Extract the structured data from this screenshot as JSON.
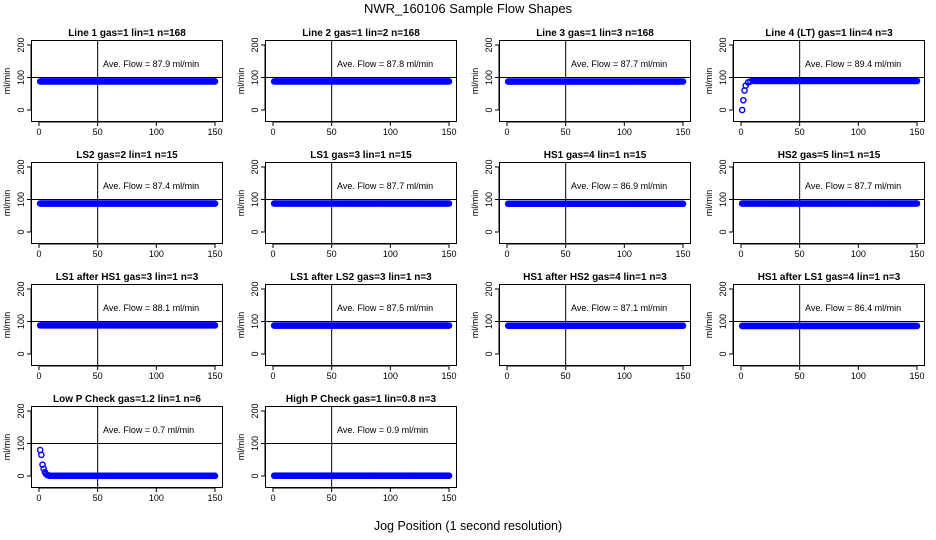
{
  "figure": {
    "title": "NWR_160106  Sample Flow Shapes",
    "xlabel": "Jog Position (1 second resolution)"
  },
  "chart_data": [
    {
      "type": "scatter",
      "title": "Line 1 gas=1 lin=1 n=168",
      "annotation": "Ave. Flow =  87.9  ml/min",
      "ylabel": "ml/min",
      "shape": "flat",
      "level": 87.9,
      "xlim": [
        0,
        150
      ],
      "ylim": [
        0,
        200
      ],
      "x_ticks": [
        0,
        50,
        100,
        150
      ],
      "y_ticks": [
        0,
        100,
        200
      ],
      "ref_hline": 100,
      "ref_vline": 50
    },
    {
      "type": "scatter",
      "title": "Line 2 gas=1 lin=2 n=168",
      "annotation": "Ave. Flow =  87.8  ml/min",
      "ylabel": "ml/min",
      "shape": "flat",
      "level": 87.8,
      "xlim": [
        0,
        150
      ],
      "ylim": [
        0,
        200
      ],
      "x_ticks": [
        0,
        50,
        100,
        150
      ],
      "y_ticks": [
        0,
        100,
        200
      ],
      "ref_hline": 100,
      "ref_vline": 50
    },
    {
      "type": "scatter",
      "title": "Line 3 gas=1 lin=3 n=168",
      "annotation": "Ave. Flow =  87.7  ml/min",
      "ylabel": "ml/min",
      "shape": "flat",
      "level": 87.7,
      "xlim": [
        0,
        150
      ],
      "ylim": [
        0,
        200
      ],
      "x_ticks": [
        0,
        50,
        100,
        150
      ],
      "y_ticks": [
        0,
        100,
        200
      ],
      "ref_hline": 100,
      "ref_vline": 50
    },
    {
      "type": "scatter",
      "title": "Line 4 (LT) gas=1 lin=4 n=3",
      "annotation": "Ave. Flow =  89.4  ml/min",
      "ylabel": "ml/min",
      "shape": "rise",
      "level": 89.4,
      "early_points": [
        [
          1,
          0
        ],
        [
          2,
          30
        ],
        [
          3,
          60
        ],
        [
          4,
          75
        ],
        [
          6,
          85
        ],
        [
          8,
          88
        ],
        [
          10,
          90
        ]
      ],
      "xlim": [
        0,
        150
      ],
      "ylim": [
        0,
        200
      ],
      "x_ticks": [
        0,
        50,
        100,
        150
      ],
      "y_ticks": [
        0,
        100,
        200
      ],
      "ref_hline": 100,
      "ref_vline": 50
    },
    {
      "type": "scatter",
      "title": "LS2 gas=2 lin=1 n=15",
      "annotation": "Ave. Flow =  87.4  ml/min",
      "ylabel": "ml/min",
      "shape": "flat",
      "level": 87.4,
      "xlim": [
        0,
        150
      ],
      "ylim": [
        0,
        200
      ],
      "x_ticks": [
        0,
        50,
        100,
        150
      ],
      "y_ticks": [
        0,
        100,
        200
      ],
      "ref_hline": 100,
      "ref_vline": 50
    },
    {
      "type": "scatter",
      "title": "LS1 gas=3 lin=1 n=15",
      "annotation": "Ave. Flow =  87.7  ml/min",
      "ylabel": "ml/min",
      "shape": "flat",
      "level": 87.7,
      "xlim": [
        0,
        150
      ],
      "ylim": [
        0,
        200
      ],
      "x_ticks": [
        0,
        50,
        100,
        150
      ],
      "y_ticks": [
        0,
        100,
        200
      ],
      "ref_hline": 100,
      "ref_vline": 50
    },
    {
      "type": "scatter",
      "title": "HS1 gas=4 lin=1 n=15",
      "annotation": "Ave. Flow =  86.9  ml/min",
      "ylabel": "ml/min",
      "shape": "flat",
      "level": 86.9,
      "xlim": [
        0,
        150
      ],
      "ylim": [
        0,
        200
      ],
      "x_ticks": [
        0,
        50,
        100,
        150
      ],
      "y_ticks": [
        0,
        100,
        200
      ],
      "ref_hline": 100,
      "ref_vline": 50
    },
    {
      "type": "scatter",
      "title": "HS2 gas=5 lin=1 n=15",
      "annotation": "Ave. Flow =  87.7  ml/min",
      "ylabel": "ml/min",
      "shape": "flat",
      "level": 87.7,
      "xlim": [
        0,
        150
      ],
      "ylim": [
        0,
        200
      ],
      "x_ticks": [
        0,
        50,
        100,
        150
      ],
      "y_ticks": [
        0,
        100,
        200
      ],
      "ref_hline": 100,
      "ref_vline": 50
    },
    {
      "type": "scatter",
      "title": "LS1 after HS1 gas=3 lin=1 n=3",
      "annotation": "Ave. Flow =  88.1  ml/min",
      "ylabel": "ml/min",
      "shape": "flat",
      "level": 88.1,
      "xlim": [
        0,
        150
      ],
      "ylim": [
        0,
        200
      ],
      "x_ticks": [
        0,
        50,
        100,
        150
      ],
      "y_ticks": [
        0,
        100,
        200
      ],
      "ref_hline": 100,
      "ref_vline": 50
    },
    {
      "type": "scatter",
      "title": "LS1 after LS2 gas=3 lin=1 n=3",
      "annotation": "Ave. Flow =  87.5  ml/min",
      "ylabel": "ml/min",
      "shape": "flat",
      "level": 87.5,
      "xlim": [
        0,
        150
      ],
      "ylim": [
        0,
        200
      ],
      "x_ticks": [
        0,
        50,
        100,
        150
      ],
      "y_ticks": [
        0,
        100,
        200
      ],
      "ref_hline": 100,
      "ref_vline": 50
    },
    {
      "type": "scatter",
      "title": "HS1 after HS2 gas=4 lin=1 n=3",
      "annotation": "Ave. Flow =  87.1  ml/min",
      "ylabel": "ml/min",
      "shape": "flat",
      "level": 87.1,
      "xlim": [
        0,
        150
      ],
      "ylim": [
        0,
        200
      ],
      "x_ticks": [
        0,
        50,
        100,
        150
      ],
      "y_ticks": [
        0,
        100,
        200
      ],
      "ref_hline": 100,
      "ref_vline": 50
    },
    {
      "type": "scatter",
      "title": "HS1 after LS1 gas=4 lin=1 n=3",
      "annotation": "Ave. Flow =  86.4  ml/min",
      "ylabel": "ml/min",
      "shape": "flat",
      "level": 86.4,
      "xlim": [
        0,
        150
      ],
      "ylim": [
        0,
        200
      ],
      "x_ticks": [
        0,
        50,
        100,
        150
      ],
      "y_ticks": [
        0,
        100,
        200
      ],
      "ref_hline": 100,
      "ref_vline": 50
    },
    {
      "type": "scatter",
      "title": "Low P Check gas=1.2 lin=1 n=6",
      "annotation": "Ave. Flow =  0.7  ml/min",
      "ylabel": "ml/min",
      "shape": "decay",
      "level": 0.7,
      "early_points": [
        [
          1,
          80
        ],
        [
          2,
          65
        ],
        [
          3,
          35
        ],
        [
          4,
          22
        ],
        [
          5,
          12
        ],
        [
          6,
          6
        ],
        [
          7,
          3
        ],
        [
          8,
          2
        ]
      ],
      "xlim": [
        0,
        150
      ],
      "ylim": [
        0,
        200
      ],
      "x_ticks": [
        0,
        50,
        100,
        150
      ],
      "y_ticks": [
        0,
        100,
        200
      ],
      "ref_hline": 100,
      "ref_vline": 50
    },
    {
      "type": "scatter",
      "title": "High P Check gas=1 lin=0.8 n=3",
      "annotation": "Ave. Flow =  0.9  ml/min",
      "ylabel": "ml/min",
      "shape": "flat",
      "level": 0.9,
      "xlim": [
        0,
        150
      ],
      "ylim": [
        0,
        200
      ],
      "x_ticks": [
        0,
        50,
        100,
        150
      ],
      "y_ticks": [
        0,
        100,
        200
      ],
      "ref_hline": 100,
      "ref_vline": 50
    }
  ]
}
